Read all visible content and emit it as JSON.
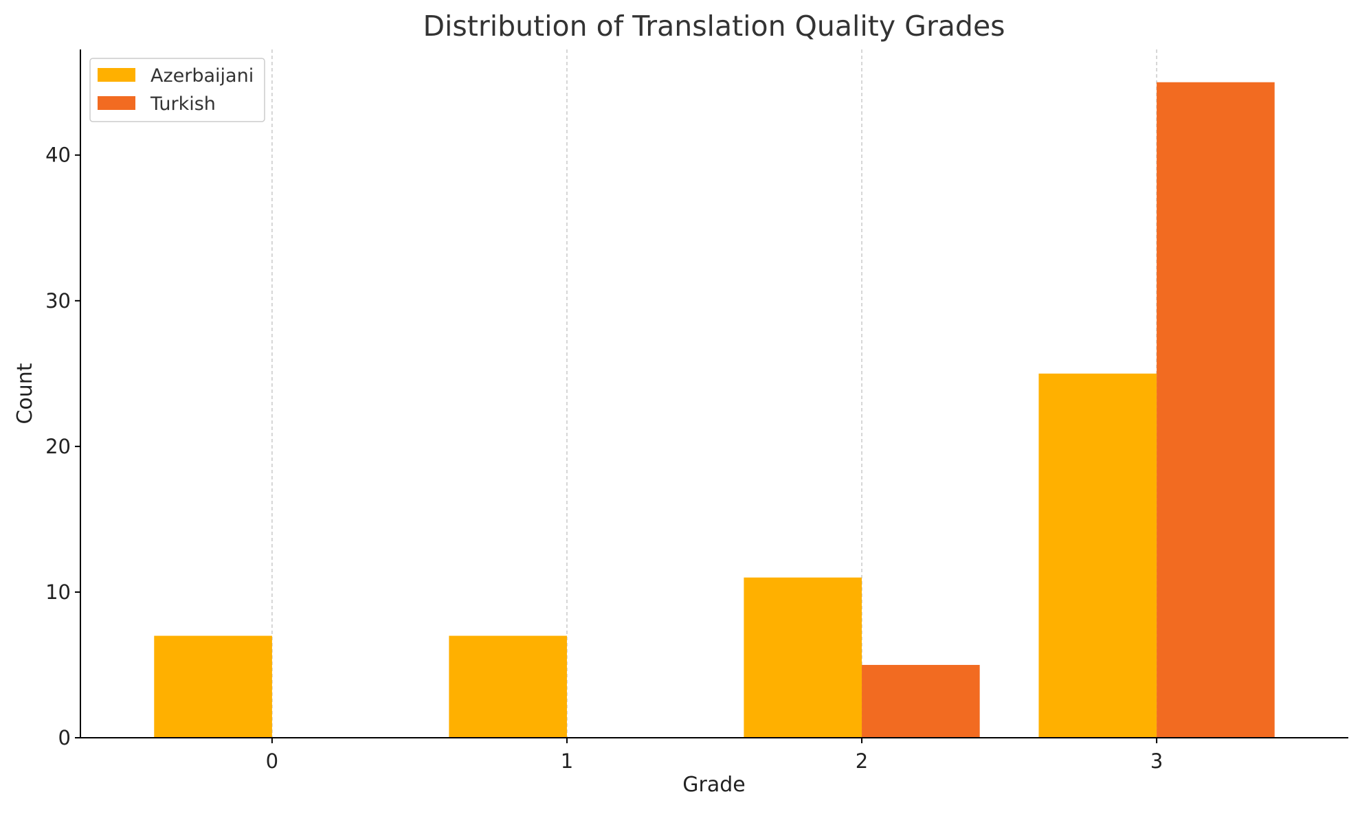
{
  "chart_data": {
    "type": "bar",
    "title": "Distribution of Translation Quality Grades",
    "xlabel": "Grade",
    "ylabel": "Count",
    "categories": [
      "0",
      "1",
      "2",
      "3"
    ],
    "series": [
      {
        "name": "Azerbaijani",
        "color": "#FFB000",
        "values": [
          7,
          7,
          11,
          25
        ]
      },
      {
        "name": "Turkish",
        "color": "#F26B21",
        "values": [
          0,
          0,
          5,
          45
        ]
      }
    ],
    "yticks": [
      "0",
      "10",
      "20",
      "30",
      "40"
    ],
    "ylim": [
      0,
      47.25
    ],
    "xlim": [
      -0.65,
      3.65
    ],
    "grid": "x-dashed",
    "legend_position": "top-left"
  }
}
